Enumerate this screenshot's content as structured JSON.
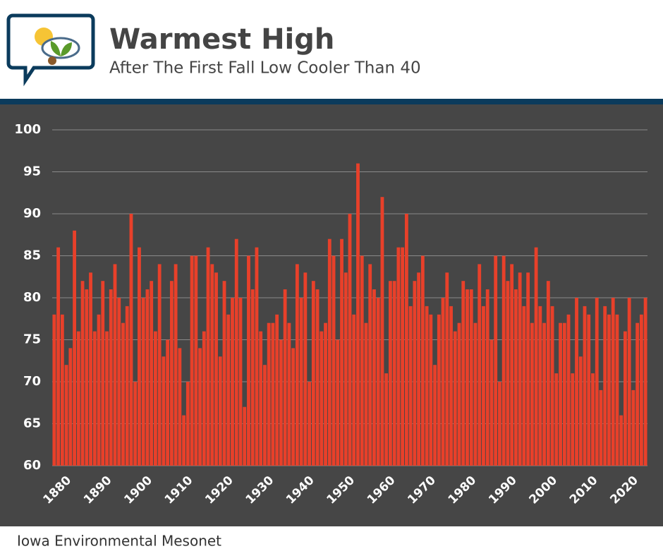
{
  "chart_data": {
    "type": "bar",
    "title": "Warmest High",
    "subtitle": "After The First Fall Low Cooler Than 40",
    "source": "Iowa Environmental Mesonet",
    "x": [
      1877,
      1878,
      1879,
      1880,
      1881,
      1882,
      1883,
      1884,
      1885,
      1886,
      1887,
      1888,
      1889,
      1890,
      1891,
      1892,
      1893,
      1894,
      1895,
      1896,
      1897,
      1898,
      1899,
      1900,
      1901,
      1902,
      1903,
      1904,
      1905,
      1906,
      1907,
      1908,
      1909,
      1910,
      1911,
      1912,
      1913,
      1914,
      1915,
      1916,
      1917,
      1918,
      1919,
      1920,
      1921,
      1922,
      1923,
      1924,
      1925,
      1926,
      1927,
      1928,
      1929,
      1930,
      1931,
      1932,
      1933,
      1934,
      1935,
      1936,
      1937,
      1938,
      1939,
      1940,
      1941,
      1942,
      1943,
      1944,
      1945,
      1946,
      1947,
      1948,
      1949,
      1950,
      1951,
      1952,
      1953,
      1954,
      1955,
      1956,
      1957,
      1958,
      1959,
      1960,
      1961,
      1962,
      1963,
      1964,
      1965,
      1966,
      1967,
      1968,
      1969,
      1970,
      1971,
      1972,
      1973,
      1974,
      1975,
      1976,
      1977,
      1978,
      1979,
      1980,
      1981,
      1982,
      1983,
      1984,
      1985,
      1986,
      1987,
      1988,
      1989,
      1990,
      1991,
      1992,
      1993,
      1994,
      1995,
      1996,
      1997,
      1998,
      1999,
      2000,
      2001,
      2002,
      2003,
      2004,
      2005,
      2006,
      2007,
      2008,
      2009,
      2010,
      2011,
      2012,
      2013,
      2014,
      2015,
      2016,
      2017,
      2018,
      2019,
      2020,
      2021,
      2022,
      2023
    ],
    "values": [
      78,
      86,
      78,
      72,
      74,
      88,
      76,
      82,
      81,
      83,
      76,
      78,
      82,
      76,
      81,
      84,
      80,
      77,
      79,
      90,
      70,
      86,
      80,
      81,
      82,
      76,
      84,
      73,
      75,
      82,
      84,
      74,
      66,
      70,
      85,
      85,
      74,
      76,
      86,
      84,
      83,
      73,
      82,
      78,
      80,
      87,
      80,
      67,
      85,
      81,
      86,
      76,
      72,
      77,
      77,
      78,
      75,
      81,
      77,
      74,
      84,
      80,
      83,
      70,
      82,
      81,
      76,
      77,
      87,
      85,
      75,
      87,
      83,
      90,
      78,
      96,
      85,
      77,
      84,
      81,
      80,
      92,
      71,
      82,
      82,
      86,
      86,
      90,
      79,
      82,
      83,
      85,
      79,
      78,
      72,
      78,
      80,
      83,
      79,
      76,
      77,
      82,
      81,
      81,
      77,
      84,
      79,
      81,
      75,
      85,
      70,
      85,
      82,
      84,
      81,
      83,
      79,
      83,
      77,
      86,
      79,
      77,
      82,
      79,
      71,
      77,
      77,
      78,
      71,
      80,
      73,
      79,
      78,
      71,
      80,
      69,
      79,
      78,
      80,
      78,
      66,
      76,
      80,
      69,
      77,
      78,
      80
    ],
    "color": "#e8402a",
    "xlim": [
      1876.5,
      2023.5
    ],
    "xticks": [
      1880,
      1890,
      1900,
      1910,
      1920,
      1930,
      1940,
      1950,
      1960,
      1970,
      1980,
      1990,
      2000,
      2010,
      2020
    ],
    "ylim": [
      60,
      100
    ],
    "yticks": [
      60,
      65,
      70,
      75,
      80,
      85,
      90,
      95,
      100
    ],
    "grid": true
  }
}
